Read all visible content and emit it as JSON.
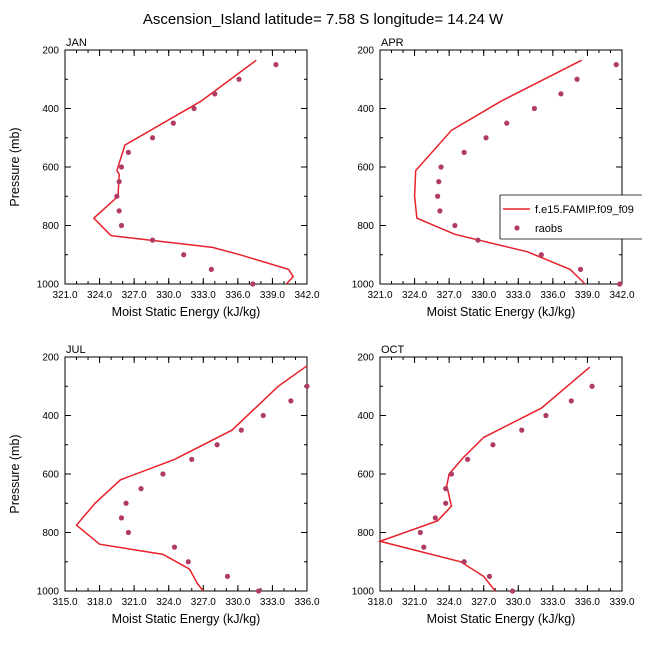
{
  "title": "Ascension_Island  latitude= 7.58 S longitude= 14.24 W",
  "colors": {
    "model": "#e8202a",
    "obs": "#b03c66"
  },
  "legend": {
    "model_label": "f.e15.FAMIP.f09_f09",
    "obs_label": "raobs"
  },
  "chart_data": [
    {
      "type": "line",
      "panel": "JAN",
      "xlabel": "Moist Static Energy (kJ/kg)",
      "ylabel": "Pressure (mb)",
      "xlim": [
        321.0,
        342.0
      ],
      "ylim": [
        1000,
        200
      ],
      "xticks": [
        "321.0",
        "324.0",
        "327.0",
        "330.0",
        "333.0",
        "336.0",
        "339.0",
        "342.0"
      ],
      "yticks": [
        "200",
        "400",
        "600",
        "800",
        "1000"
      ],
      "series": [
        {
          "name": "f.e15.FAMIP.f09_f09",
          "kind": "line",
          "x": [
            337.6,
            332.8,
            326.2,
            325.5,
            325.7,
            325.6,
            323.5,
            325.0,
            333.8,
            336.2,
            340.4,
            340.8,
            340.2
          ],
          "y": [
            235,
            375,
            525,
            612,
            625,
            700,
            775,
            835,
            875,
            900,
            950,
            975,
            1000
          ]
        },
        {
          "name": "raobs",
          "kind": "scatter",
          "x": [
            339.3,
            336.1,
            334.0,
            332.2,
            330.4,
            328.6,
            326.5,
            325.9,
            325.7,
            325.5,
            325.7,
            325.9,
            328.6,
            331.3,
            333.7,
            337.3
          ],
          "y": [
            250,
            300,
            350,
            400,
            450,
            500,
            550,
            600,
            650,
            700,
            750,
            800,
            850,
            900,
            950,
            1000
          ]
        }
      ]
    },
    {
      "type": "line",
      "panel": "APR",
      "xlabel": "Moist Static Energy (kJ/kg)",
      "ylabel": "",
      "xlim": [
        321.0,
        342.0
      ],
      "ylim": [
        1000,
        200
      ],
      "xticks": [
        "321.0",
        "324.0",
        "327.0",
        "330.0",
        "333.0",
        "336.0",
        "339.0",
        "342.0"
      ],
      "yticks": [
        "200",
        "400",
        "600",
        "800",
        "1000"
      ],
      "series": [
        {
          "name": "f.e15.FAMIP.f09_f09",
          "kind": "line",
          "x": [
            338.5,
            331.5,
            327.2,
            324.1,
            324.0,
            324.2,
            327.5,
            333.8,
            337.5,
            338.8
          ],
          "y": [
            235,
            375,
            475,
            612,
            700,
            775,
            830,
            890,
            950,
            1000
          ]
        },
        {
          "name": "raobs",
          "kind": "scatter",
          "x": [
            341.5,
            338.1,
            336.7,
            334.4,
            332.0,
            330.2,
            328.3,
            326.3,
            326.1,
            326.0,
            326.2,
            327.5,
            329.5,
            335.0,
            338.4,
            341.8
          ],
          "y": [
            250,
            300,
            350,
            400,
            450,
            500,
            550,
            600,
            650,
            700,
            750,
            800,
            850,
            900,
            950,
            1000
          ]
        }
      ]
    },
    {
      "type": "line",
      "panel": "JUL",
      "xlabel": "Moist Static Energy (kJ/kg)",
      "ylabel": "Pressure (mb)",
      "xlim": [
        315.0,
        336.0
      ],
      "ylim": [
        1000,
        200
      ],
      "xticks": [
        "315.0",
        "318.0",
        "321.0",
        "324.0",
        "327.0",
        "330.0",
        "333.0",
        "336.0"
      ],
      "yticks": [
        "200",
        "400",
        "600",
        "800",
        "1000"
      ],
      "series": [
        {
          "name": "f.e15.FAMIP.f09_f09",
          "kind": "line",
          "x": [
            336.0,
            333.5,
            329.5,
            324.5,
            319.8,
            317.6,
            316.0,
            318.0,
            323.5,
            325.8,
            326.5,
            327.0
          ],
          "y": [
            230,
            300,
            450,
            550,
            620,
            700,
            775,
            840,
            875,
            925,
            975,
            1000
          ]
        },
        {
          "name": "raobs",
          "kind": "scatter",
          "x": [
            336.0,
            334.6,
            332.2,
            330.3,
            328.2,
            326.0,
            323.5,
            321.6,
            320.3,
            319.9,
            320.5,
            324.5,
            325.7,
            329.1,
            331.8
          ],
          "y": [
            300,
            350,
            400,
            450,
            500,
            550,
            600,
            650,
            700,
            750,
            800,
            850,
            900,
            950,
            1000
          ]
        }
      ]
    },
    {
      "type": "line",
      "panel": "OCT",
      "xlabel": "Moist Static Energy (kJ/kg)",
      "ylabel": "",
      "xlim": [
        318.0,
        339.0
      ],
      "ylim": [
        1000,
        200
      ],
      "xticks": [
        "318.0",
        "321.0",
        "324.0",
        "327.0",
        "330.0",
        "333.0",
        "336.0",
        "339.0"
      ],
      "yticks": [
        "200",
        "400",
        "600",
        "800",
        "1000"
      ],
      "series": [
        {
          "name": "f.e15.FAMIP.f09_f09",
          "kind": "line",
          "x": [
            336.2,
            332.0,
            327.0,
            325.2,
            324.0,
            323.8,
            324.2,
            323.0,
            318.0,
            320.0,
            325.0,
            327.0,
            328.0
          ],
          "y": [
            235,
            375,
            475,
            545,
            600,
            640,
            710,
            760,
            830,
            850,
            900,
            950,
            1000
          ]
        },
        {
          "name": "raobs",
          "kind": "scatter",
          "x": [
            336.4,
            334.6,
            332.4,
            330.3,
            327.8,
            325.6,
            324.2,
            323.7,
            323.7,
            322.8,
            321.5,
            321.8,
            325.3,
            327.5,
            329.5
          ],
          "y": [
            300,
            350,
            400,
            450,
            500,
            550,
            600,
            650,
            700,
            750,
            800,
            850,
            900,
            950,
            1000
          ]
        }
      ]
    }
  ]
}
